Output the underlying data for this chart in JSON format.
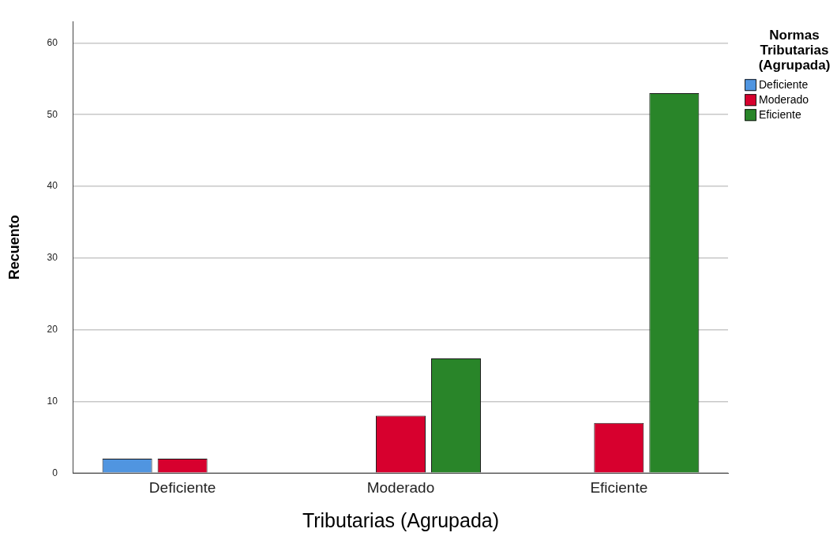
{
  "chart_data": {
    "type": "bar",
    "xlabel": "Tributarias (Agrupada)",
    "ylabel": "Recuento",
    "legend_title": "Normas Tributarias (Agrupada)",
    "categories": [
      "Deficiente",
      "Moderado",
      "Eficiente"
    ],
    "series": [
      {
        "name": "Deficiente",
        "color": "#5095e0",
        "values": [
          2,
          null,
          null
        ]
      },
      {
        "name": "Moderado",
        "color": "#d7002e",
        "values": [
          2,
          8,
          7
        ]
      },
      {
        "name": "Eficiente",
        "color": "#298529",
        "values": [
          null,
          16,
          53
        ]
      }
    ],
    "ylim": [
      0,
      63
    ],
    "yticks": [
      0,
      10,
      20,
      30,
      40,
      50,
      60
    ],
    "grid": "y",
    "legend": "top right"
  }
}
